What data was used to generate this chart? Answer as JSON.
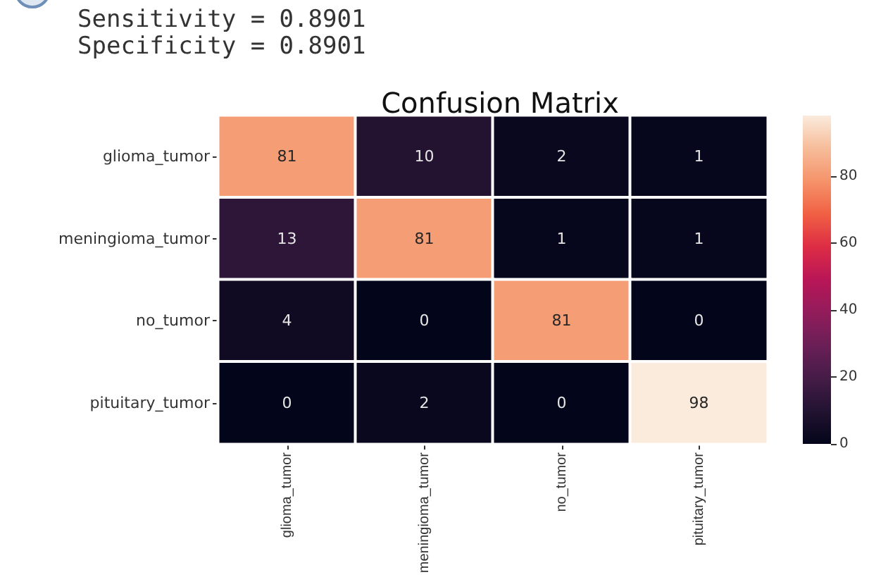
{
  "chart_data": {
    "type": "heatmap",
    "title": "Confusion Matrix",
    "annotations": [
      "Sensitivity = 0.8901",
      "Specificity = 0.8901"
    ],
    "categories": [
      "glioma_tumor",
      "meningioma_tumor",
      "no_tumor",
      "pituitary_tumor"
    ],
    "y_categories": [
      "glioma_tumor",
      "meningioma_tumor",
      "no_tumor",
      "pituitary_tumor"
    ],
    "cells": [
      [
        81,
        10,
        2,
        1
      ],
      [
        13,
        81,
        1,
        1
      ],
      [
        4,
        0,
        81,
        0
      ],
      [
        0,
        2,
        0,
        98
      ]
    ],
    "clim": [
      0,
      98
    ],
    "cticks": [
      0,
      20,
      40,
      60,
      80
    ],
    "data_labels": true
  }
}
